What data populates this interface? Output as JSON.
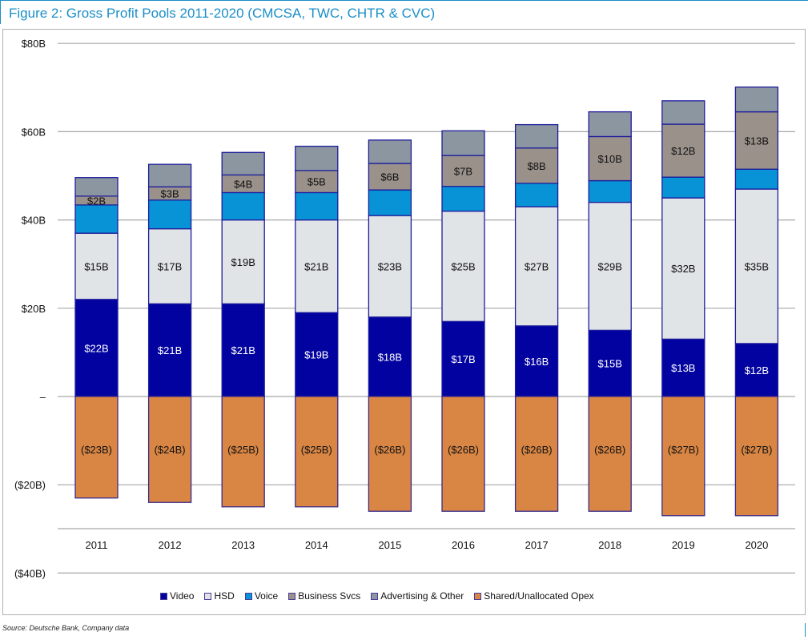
{
  "title": "Figure 2: Gross Profit Pools 2011-2020 (CMCSA, TWC, CHTR & CVC)",
  "source": "Source: Deutsche Bank, Company data",
  "chart_data": {
    "type": "bar",
    "stacked": true,
    "title": "Figure 2: Gross Profit Pools 2011-2020 (CMCSA, TWC, CHTR & CVC)",
    "xlabel": "",
    "ylabel": "",
    "units": "USD billions",
    "ylim": [
      -40,
      80
    ],
    "yticks": [
      80,
      60,
      40,
      20,
      0,
      -20,
      -40
    ],
    "ytick_labels": [
      "$80B",
      "$60B",
      "$40B",
      "$20B",
      "–",
      "($20B)",
      "($40B)"
    ],
    "grid": true,
    "legend_position": "bottom",
    "categories": [
      "2011",
      "2012",
      "2013",
      "2014",
      "2015",
      "2016",
      "2017",
      "2018",
      "2019",
      "2020"
    ],
    "series": [
      {
        "name": "Video",
        "color": "#0202a0",
        "label_color": "#ffffff",
        "values": [
          22,
          21,
          21,
          19,
          18,
          17,
          16,
          15,
          13,
          12
        ],
        "labels": [
          "$22B",
          "$21B",
          "$21B",
          "$19B",
          "$18B",
          "$17B",
          "$16B",
          "$15B",
          "$13B",
          "$12B"
        ]
      },
      {
        "name": "HSD",
        "color": "#e1e4e6",
        "label_color": "#111111",
        "values": [
          15,
          17,
          19,
          21,
          23,
          25,
          27,
          29,
          32,
          35
        ],
        "labels": [
          "$15B",
          "$17B",
          "$19B",
          "$21B",
          "$23B",
          "$25B",
          "$27B",
          "$29B",
          "$32B",
          "$35B"
        ]
      },
      {
        "name": "Voice",
        "color": "#0893d6",
        "label_color": null,
        "values": [
          6.4,
          6.5,
          6.2,
          6.2,
          5.8,
          5.6,
          5.3,
          4.9,
          4.7,
          4.5
        ],
        "labels": null
      },
      {
        "name": "Business Svcs",
        "color": "#9a918a",
        "label_color": "#111111",
        "values": [
          2,
          3,
          4,
          5,
          6,
          7,
          8,
          10,
          12,
          13
        ],
        "labels": [
          "$2B",
          "$3B",
          "$4B",
          "$5B",
          "$6B",
          "$7B",
          "$8B",
          "$10B",
          "$12B",
          "$13B"
        ]
      },
      {
        "name": "Advertising & Other",
        "color": "#8b96a0",
        "label_color": null,
        "values": [
          4.2,
          5.1,
          5.1,
          5.5,
          5.3,
          5.6,
          5.3,
          5.6,
          5.3,
          5.6
        ],
        "labels": null
      },
      {
        "name": "Shared/Unallocated Opex",
        "color": "#d98644",
        "label_color": "#111111",
        "values": [
          -23,
          -24,
          -25,
          -25,
          -26,
          -26,
          -26,
          -26,
          -27,
          -27
        ],
        "labels": [
          "($23B)",
          "($24B)",
          "($25B)",
          "($25B)",
          "($26B)",
          "($26B)",
          "($26B)",
          "($26B)",
          "($27B)",
          "($27B)"
        ]
      }
    ]
  }
}
